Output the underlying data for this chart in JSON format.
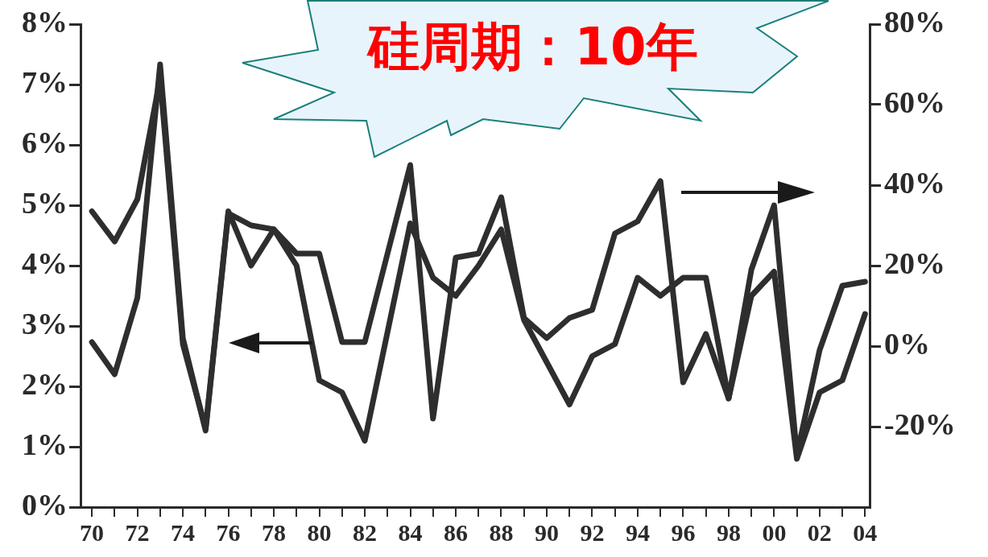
{
  "chart_data": {
    "type": "line",
    "title": "硅周期：10年",
    "x": [
      1970,
      1971,
      1972,
      1973,
      1974,
      1975,
      1976,
      1977,
      1978,
      1979,
      1980,
      1981,
      1982,
      1983,
      1984,
      1985,
      1986,
      1987,
      1988,
      1989,
      1990,
      1991,
      1992,
      1993,
      1994,
      1995,
      1996,
      1997,
      1998,
      1999,
      2000,
      2001,
      2002,
      2003,
      2004
    ],
    "series": [
      {
        "color": "#2e2e2e",
        "values": [
          4.9,
          4.4,
          5.1,
          7.1,
          2.7,
          1.3,
          4.9,
          4.0,
          4.6,
          4.0,
          2.1,
          1.9,
          1.1,
          2.9,
          4.7,
          3.8,
          3.5,
          4.0,
          4.6,
          3.1,
          2.4,
          1.7,
          2.5,
          2.7,
          3.8,
          3.5,
          3.8,
          3.8,
          1.8,
          3.5,
          3.9,
          0.8,
          1.9,
          2.1,
          3.2
        ]
      },
      {
        "color": "#2e2e2e",
        "axis": "y2",
        "values": [
          1,
          -7,
          12,
          70,
          2,
          -21,
          33,
          30,
          29,
          23,
          23,
          1,
          1,
          23,
          45,
          -18,
          22,
          23,
          37,
          7,
          2,
          7,
          9,
          28,
          31,
          41,
          -9,
          3,
          -13,
          19,
          35,
          -27,
          -1,
          15,
          16
        ]
      }
    ],
    "xlim": [
      1969.5,
      2004.2
    ],
    "xticks": [
      {
        "value": 1970,
        "label": "70"
      },
      {
        "value": 1971,
        "label": null
      },
      {
        "value": 1972,
        "label": "72"
      },
      {
        "value": 1973,
        "label": null
      },
      {
        "value": 1974,
        "label": "74"
      },
      {
        "value": 1975,
        "label": null
      },
      {
        "value": 1976,
        "label": "76"
      },
      {
        "value": 1977,
        "label": null
      },
      {
        "value": 1978,
        "label": "78"
      },
      {
        "value": 1979,
        "label": null
      },
      {
        "value": 1980,
        "label": "80"
      },
      {
        "value": 1981,
        "label": null
      },
      {
        "value": 1982,
        "label": "82"
      },
      {
        "value": 1983,
        "label": null
      },
      {
        "value": 1984,
        "label": "84"
      },
      {
        "value": 1985,
        "label": null
      },
      {
        "value": 1986,
        "label": "86"
      },
      {
        "value": 1987,
        "label": null
      },
      {
        "value": 1988,
        "label": "88"
      },
      {
        "value": 1989,
        "label": null
      },
      {
        "value": 1990,
        "label": "90"
      },
      {
        "value": 1991,
        "label": null
      },
      {
        "value": 1992,
        "label": "92"
      },
      {
        "value": 1993,
        "label": null
      },
      {
        "value": 1994,
        "label": "94"
      },
      {
        "value": 1995,
        "label": null
      },
      {
        "value": 1996,
        "label": "96"
      },
      {
        "value": 1997,
        "label": null
      },
      {
        "value": 1998,
        "label": "98"
      },
      {
        "value": 1999,
        "label": null
      },
      {
        "value": 2000,
        "label": "00"
      },
      {
        "value": 2001,
        "label": null
      },
      {
        "value": 2002,
        "label": "02"
      },
      {
        "value": 2003,
        "label": null
      },
      {
        "value": 2004,
        "label": "04"
      }
    ],
    "ylim": [
      0,
      8
    ],
    "yticks": [
      {
        "value": 0,
        "label": "0%"
      },
      {
        "value": 1,
        "label": "1%"
      },
      {
        "value": 2,
        "label": "2%"
      },
      {
        "value": 3,
        "label": "3%"
      },
      {
        "value": 4,
        "label": "4%"
      },
      {
        "value": 5,
        "label": "5%"
      },
      {
        "value": 6,
        "label": "6%"
      },
      {
        "value": 7,
        "label": "7%"
      },
      {
        "value": 8,
        "label": "8%"
      }
    ],
    "y2lim": [
      -40,
      80
    ],
    "y2ticks": [
      {
        "value": -20,
        "label": "-20%"
      },
      {
        "value": 0,
        "label": "0%"
      },
      {
        "value": 20,
        "label": "20%"
      },
      {
        "value": 40,
        "label": "40%"
      },
      {
        "value": 60,
        "label": "60%"
      },
      {
        "value": 80,
        "label": "80%"
      }
    ],
    "marker": "none",
    "line_style": "solid"
  }
}
